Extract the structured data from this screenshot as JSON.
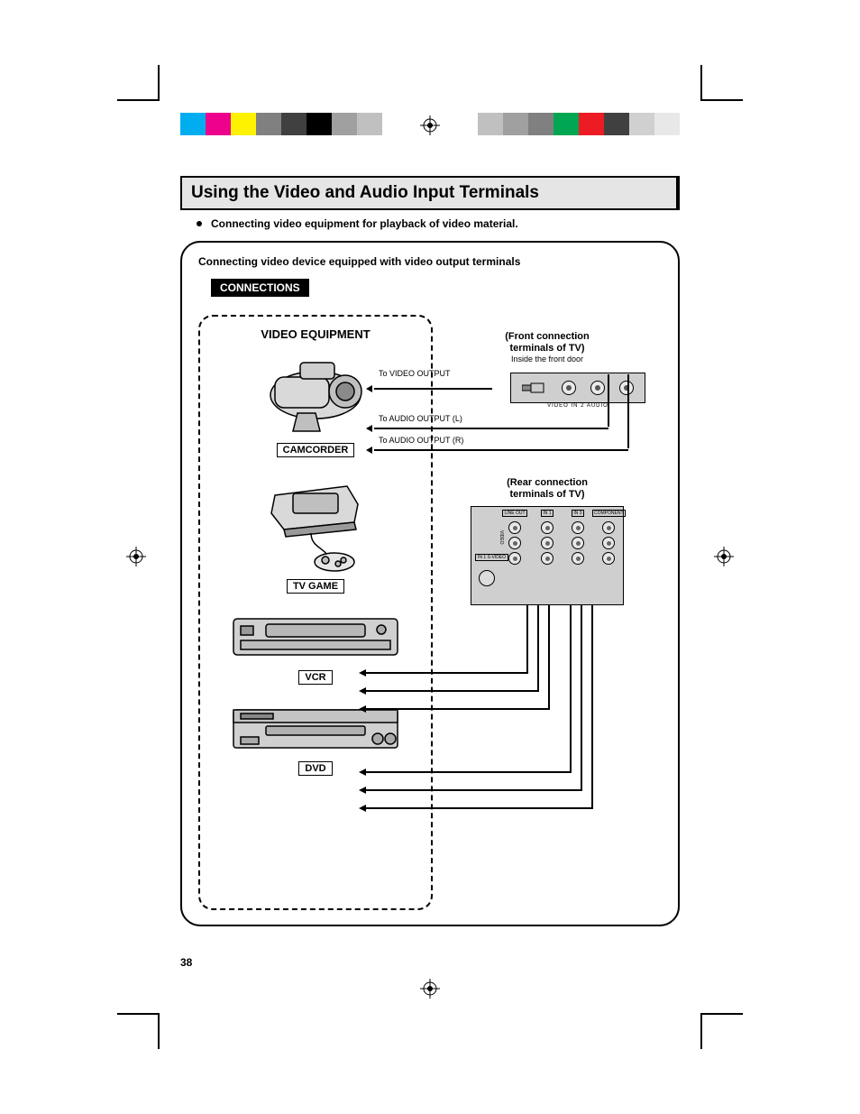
{
  "page_number": "38",
  "title": "Using the Video and Audio Input Terminals",
  "bullet": "Connecting video equipment for playback of video material.",
  "box_heading": "Connecting video device equipped with video output terminals",
  "connections_label": "CONNECTIONS",
  "video_equipment_title": "VIDEO EQUIPMENT",
  "devices": {
    "camcorder": "CAMCORDER",
    "tvgame": "TV GAME",
    "vcr": "VCR",
    "dvd": "DVD"
  },
  "front_terminal": {
    "title_l1": "(Front connection",
    "title_l2": "terminals of TV)",
    "subtitle": "Inside the front door",
    "signals": {
      "video": "To VIDEO OUTPUT",
      "audio_l": "To AUDIO OUTPUT (L)",
      "audio_r": "To AUDIO OUTPUT (R)"
    },
    "jack_labels": "VIDEO    IN 2    AUDIO"
  },
  "rear_terminal": {
    "title_l1": "(Rear connection",
    "title_l2": "terminals of TV)",
    "cols": [
      "LINE OUT",
      "IN 1",
      "IN 3",
      "COMPONENT"
    ],
    "svideo": "IN 1 S-VIDEO",
    "row_lbl_v": "VIDEO",
    "row_lbl_l": "L",
    "row_lbl_r": "R"
  },
  "colors": {
    "page_bg": "#ffffff",
    "titlebar_bg": "#e5e5e5",
    "panel_bg": "#cfcfcf",
    "black": "#000000"
  },
  "color_bar_left": [
    "#00aeef",
    "#ec008c",
    "#fff200",
    "#808080",
    "#404040",
    "#000000",
    "#a0a0a0",
    "#c0c0c0"
  ],
  "color_bar_right": [
    "#c0c0c0",
    "#a0a0a0",
    "#808080",
    "#00a651",
    "#ed1c24",
    "#404040",
    "#d0d0d0",
    "#e8e8e8"
  ]
}
